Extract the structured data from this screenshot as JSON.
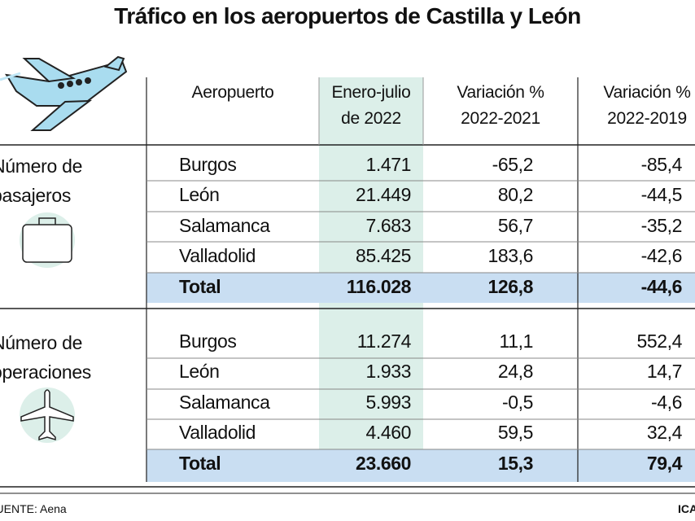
{
  "title": "Tráfico en los aeropuertos de Castilla y León",
  "header": {
    "columns": [
      [
        "Aeropuerto"
      ],
      [
        "Enero-julio",
        "de 2022"
      ],
      [
        "Variación %",
        "2022-2021"
      ],
      [
        "Variación %",
        "2022-2019"
      ]
    ]
  },
  "groups": [
    {
      "label": [
        "Número de",
        "pasajeros"
      ],
      "rows": [
        [
          "Burgos",
          "1.471",
          "-65,2",
          "-85,4"
        ],
        [
          "León",
          "21.449",
          "80,2",
          "-44,5"
        ],
        [
          "Salamanca",
          "7.683",
          "56,7",
          "-35,2"
        ],
        [
          "Valladolid",
          "85.425",
          "183,6",
          "-42,6"
        ]
      ],
      "total": [
        "Total",
        "116.028",
        "126,8",
        "-44,6"
      ]
    },
    {
      "label": [
        "Número de",
        "operaciones"
      ],
      "rows": [
        [
          "Burgos",
          "11.274",
          "11,1",
          "552,4"
        ],
        [
          "León",
          "1.933",
          "24,8",
          "14,7"
        ],
        [
          "Salamanca",
          "5.993",
          "-0,5",
          "-4,6"
        ],
        [
          "Valladolid",
          "4.460",
          "59,5",
          "32,4"
        ]
      ],
      "total": [
        "Total",
        "23.660",
        "15,3",
        "79,4"
      ]
    }
  ],
  "footer": {
    "source": "FUENTE: Aena",
    "credit": "ICAL"
  }
}
